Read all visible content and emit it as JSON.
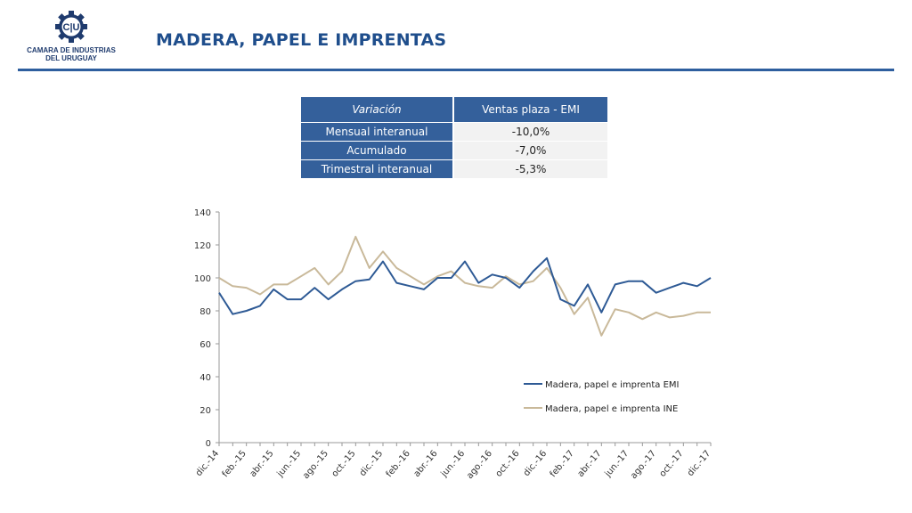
{
  "header": {
    "logo_mark": "C|U",
    "logo_line1": "CAMARA DE INDUSTRIAS",
    "logo_line2": "DEL URUGUAY",
    "title": "MADERA, PAPEL E IMPRENTAS"
  },
  "colors": {
    "brand": "#1f4e8c",
    "table_header": "#34609b",
    "series_emi": "#2e5a95",
    "series_ine": "#c9b99a"
  },
  "table": {
    "headers": [
      "Variación",
      "Ventas plaza - EMI"
    ],
    "rows": [
      [
        "Mensual interanual",
        "-10,0%"
      ],
      [
        "Acumulado",
        "-7,0%"
      ],
      [
        "Trimestral interanual",
        "-5,3%"
      ]
    ]
  },
  "chart_data": {
    "type": "line",
    "title": "",
    "xlabel": "",
    "ylabel": "",
    "ylim": [
      0,
      140
    ],
    "yticks": [
      0,
      20,
      40,
      60,
      80,
      100,
      120,
      140
    ],
    "grid": false,
    "legend_position": "bottom-right",
    "x": [
      "dic.-14",
      "ene.-15",
      "feb.-15",
      "mar.-15",
      "abr.-15",
      "may.-15",
      "jun.-15",
      "jul.-15",
      "ago.-15",
      "sep.-15",
      "oct.-15",
      "nov.-15",
      "dic.-15",
      "ene.-16",
      "feb.-16",
      "mar.-16",
      "abr.-16",
      "may.-16",
      "jun.-16",
      "jul.-16",
      "ago.-16",
      "sep.-16",
      "oct.-16",
      "nov.-16",
      "dic.-16",
      "ene.-17",
      "feb.-17",
      "mar.-17",
      "abr.-17",
      "may.-17",
      "jun.-17",
      "jul.-17",
      "ago.-17",
      "sep.-17",
      "oct.-17",
      "nov.-17",
      "dic.-17"
    ],
    "xtick_labels": [
      "dic.-14",
      "feb.-15",
      "abr.-15",
      "jun.-15",
      "ago.-15",
      "oct.-15",
      "dic.-15",
      "feb.-16",
      "abr.-16",
      "jun.-16",
      "ago.-16",
      "oct.-16",
      "dic.-16",
      "feb.-17",
      "abr.-17",
      "jun.-17",
      "ago.-17",
      "oct.-17",
      "dic.-17"
    ],
    "series": [
      {
        "name": "Madera, papel e imprenta EMI",
        "color": "#2e5a95",
        "values": [
          91,
          78,
          80,
          83,
          93,
          87,
          87,
          94,
          87,
          93,
          98,
          99,
          110,
          97,
          95,
          93,
          100,
          100,
          110,
          97,
          102,
          100,
          94,
          104,
          112,
          87,
          83,
          96,
          79,
          96,
          98,
          98,
          91,
          94,
          97,
          95,
          100
        ]
      },
      {
        "name": "Madera, papel e imprenta INE",
        "color": "#c9b99a",
        "values": [
          100,
          95,
          94,
          90,
          96,
          96,
          101,
          106,
          96,
          104,
          125,
          106,
          116,
          106,
          101,
          96,
          101,
          104,
          97,
          95,
          94,
          101,
          96,
          98,
          106,
          94,
          78,
          88,
          65,
          81,
          79,
          75,
          79,
          76,
          77,
          79,
          79
        ]
      }
    ]
  }
}
